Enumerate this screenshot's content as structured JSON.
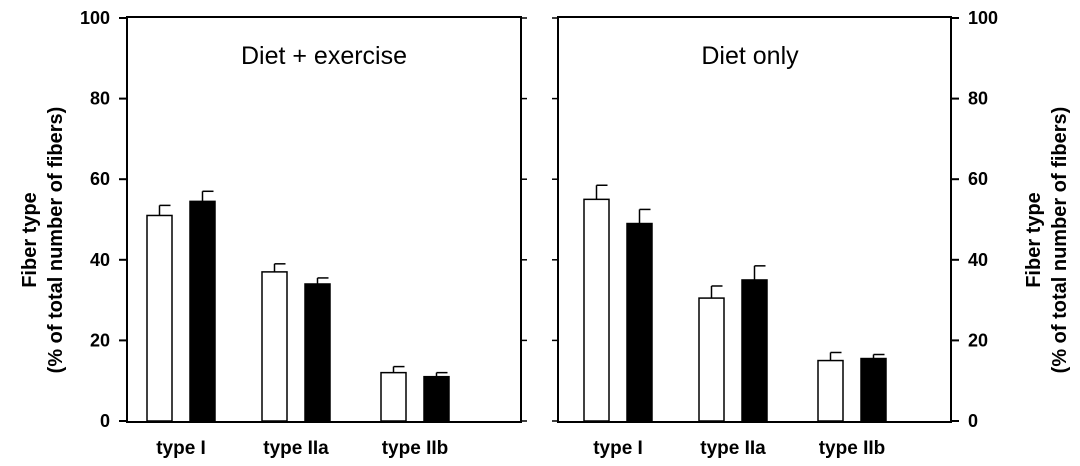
{
  "chart_data": {
    "type": "bar",
    "ylim": [
      0,
      100
    ],
    "yticks": [
      0,
      20,
      40,
      60,
      80,
      100
    ],
    "ylabel_line1": "Fiber type",
    "ylabel_line2": "(% of total number of fibers)",
    "colors": {
      "open": "#ffffff",
      "filled": "#000000",
      "axis": "#000000"
    },
    "panels": [
      {
        "title": "Diet + exercise",
        "categories": [
          "type I",
          "type IIa",
          "type IIb"
        ],
        "series": [
          {
            "fill": "open",
            "values": [
              51,
              37,
              12
            ],
            "errors": [
              2.5,
              2,
              1.5
            ]
          },
          {
            "fill": "filled",
            "values": [
              54.5,
              34,
              11
            ],
            "errors": [
              2.5,
              1.5,
              1
            ]
          }
        ]
      },
      {
        "title": "Diet only",
        "categories": [
          "type I",
          "type IIa",
          "type IIb"
        ],
        "series": [
          {
            "fill": "open",
            "values": [
              55,
              30.5,
              15
            ],
            "errors": [
              3.5,
              3,
              2
            ]
          },
          {
            "fill": "filled",
            "values": [
              49,
              35,
              15.5
            ],
            "errors": [
              3.5,
              3.5,
              1
            ]
          }
        ]
      }
    ]
  }
}
